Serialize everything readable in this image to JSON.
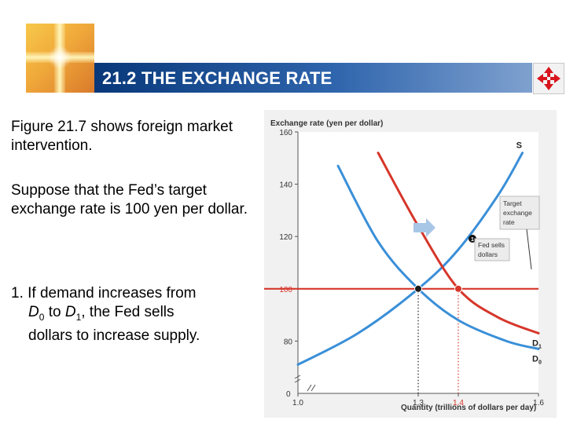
{
  "slide": {
    "title": "21.2 THE EXCHANGE RATE",
    "paragraph1": "Figure 21.7 shows foreign market intervention.",
    "paragraph2": "Suppose that the Fed’s target exchange rate is 100 yen per dollar.",
    "step_number": "1.",
    "step_line1_a": "If demand increases from",
    "step_d0_letter": "D",
    "step_d0_sub": "0",
    "step_to": " to ",
    "step_d1_letter": "D",
    "step_d1_sub": "1",
    "step_line2_end": ", the Fed sells",
    "step_line3": "dollars to increase supply.",
    "icons": {
      "logo": "golden-cross-logo",
      "nav": "four-way-arrows-icon"
    },
    "colors": {
      "title_start": "#08387a",
      "title_end": "#7fa1cf",
      "nav_arrows": "#d8141c"
    }
  },
  "chart_data": {
    "type": "line",
    "ylabel": "Exchange rate (yen per dollar)",
    "xlabel": "Quantity (trillions of dollars per day)",
    "ylim": [
      60,
      160
    ],
    "xlim": [
      1.0,
      1.6
    ],
    "yticks": [
      {
        "value": 160,
        "label": "160"
      },
      {
        "value": 140,
        "label": "140"
      },
      {
        "value": 120,
        "label": "120"
      },
      {
        "value": 100,
        "label": "100",
        "highlight": true
      },
      {
        "value": 80,
        "label": "80"
      }
    ],
    "xticks": [
      {
        "value": 1.0,
        "label": "1.0"
      },
      {
        "value": 1.3,
        "label": "1.3"
      },
      {
        "value": 1.4,
        "label": "1.4",
        "highlight": true
      },
      {
        "value": 1.6,
        "label": "1.6"
      }
    ],
    "origin_label": "0",
    "series": [
      {
        "name": "S",
        "label": "S",
        "color": "#3a8fd8",
        "x": [
          1.0,
          1.15,
          1.3,
          1.4,
          1.5,
          1.56
        ],
        "y": [
          71,
          83,
          100,
          115,
          136,
          152
        ]
      },
      {
        "name": "D0",
        "label_letter": "D",
        "label_sub": "0",
        "color": "#3a8fd8",
        "x": [
          1.1,
          1.2,
          1.3,
          1.4,
          1.52,
          1.6
        ],
        "y": [
          147,
          118,
          100,
          88,
          80,
          77
        ]
      },
      {
        "name": "D1",
        "label_letter": "D",
        "label_sub": "1",
        "color": "#d6362a",
        "x": [
          1.2,
          1.3,
          1.4,
          1.5,
          1.6
        ],
        "y": [
          152,
          124,
          100,
          89,
          83
        ]
      }
    ],
    "target_line": {
      "y": 100,
      "color": "#d6362a"
    },
    "points": [
      {
        "x": 1.3,
        "y": 100,
        "color": "#1a1a1a"
      },
      {
        "x": 1.4,
        "y": 100,
        "color": "#d6362a"
      }
    ],
    "annotations": {
      "target": "Target exchange rate",
      "step_marker": "1",
      "fed_sells": "Fed sells dollars"
    },
    "grid": false
  }
}
